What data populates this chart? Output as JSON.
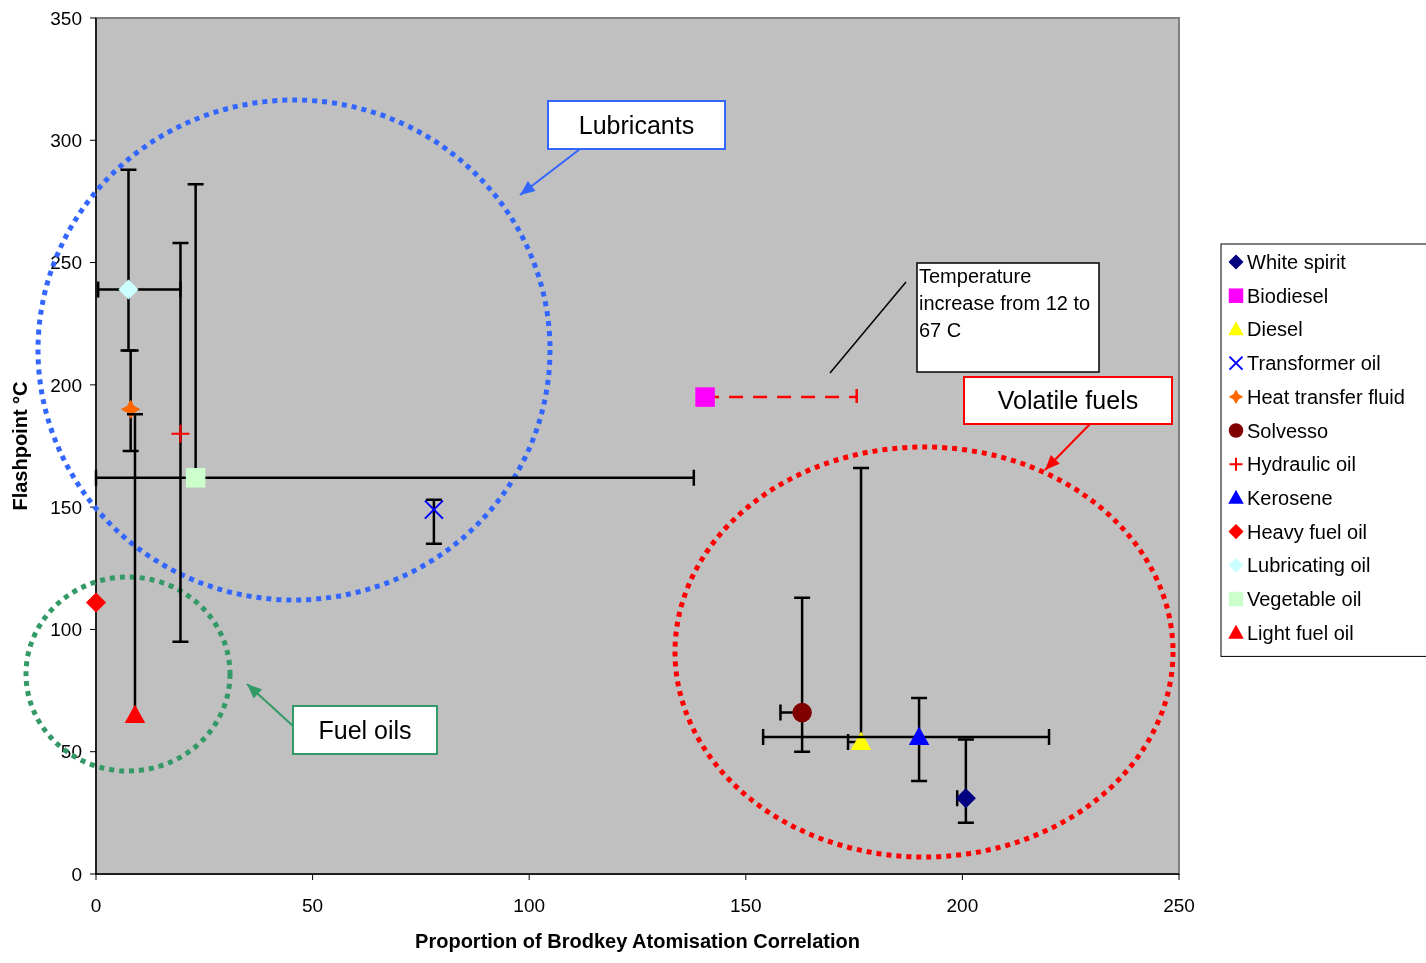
{
  "chart_data": {
    "type": "scatter",
    "xlabel": "Proportion of Brodkey Atomisation Correlation",
    "ylabel": "Flashpoint °C",
    "xlim": [
      0,
      250
    ],
    "xticks": [
      0,
      50,
      100,
      150,
      200,
      250
    ],
    "ylim": [
      0,
      350
    ],
    "yticks": [
      0,
      50,
      100,
      150,
      200,
      250,
      300,
      350
    ],
    "grid": false,
    "legend": "right",
    "annotations": [
      "Lubricants",
      "Fuel oils",
      "Volatile fuels",
      "Temperature increase from 12 to 67 C"
    ],
    "series": [
      {
        "name": "White spirit",
        "color": "#000080",
        "marker": "diamond",
        "x": [
          200.8
        ],
        "values": [
          31
        ],
        "errors": [
          [
            21,
            55
          ]
        ],
        "xerrors": [
          [
            198.8,
            200.8
          ]
        ]
      },
      {
        "name": "Biodiesel",
        "color": "#ff00ff",
        "marker": "square",
        "x": [
          140.6
        ],
        "values": [
          195
        ],
        "xerrors": [
          [
            140.6,
            175.6
          ]
        ],
        "line_style": "dashed"
      },
      {
        "name": "Diesel",
        "color": "#ffff00",
        "marker": "triangle",
        "x": [
          176.6
        ],
        "values": [
          54
        ],
        "errors": [
          [
            54,
            166
          ]
        ],
        "xerrors": [
          [
            173.6,
            176.6
          ]
        ]
      },
      {
        "name": "Transformer oil",
        "color": "#0000ff",
        "marker": "cross",
        "x": [
          78
        ],
        "values": [
          149
        ],
        "errors": [
          [
            135,
            153
          ]
        ]
      },
      {
        "name": "Heat transfer fluid",
        "color": "#ff6600",
        "marker": "star",
        "x": [
          8
        ],
        "values": [
          190
        ],
        "errors": [
          [
            173,
            214
          ]
        ]
      },
      {
        "name": "Solvesso",
        "color": "#800000",
        "marker": "circle",
        "x": [
          163
        ],
        "values": [
          66
        ],
        "errors": [
          [
            50,
            113
          ]
        ],
        "xerrors": [
          [
            158,
            163
          ]
        ]
      },
      {
        "name": "Hydraulic oil",
        "color": "#ff0000",
        "marker": "plus",
        "x": [
          19.5
        ],
        "values": [
          180
        ],
        "errors": [
          [
            95,
            258
          ]
        ]
      },
      {
        "name": "Kerosene",
        "color": "#0000ff",
        "marker": "triangle",
        "x": [
          190
        ],
        "values": [
          56
        ],
        "errors": [
          [
            38,
            72
          ]
        ],
        "xerrors": [
          [
            154,
            220
          ]
        ]
      },
      {
        "name": "Heavy fuel oil",
        "color": "#ff0000",
        "marker": "diamond",
        "x": [
          0
        ],
        "values": [
          111
        ]
      },
      {
        "name": "Lubricating oil",
        "color": "#ccffff",
        "marker": "diamond",
        "x": [
          7.5
        ],
        "values": [
          239
        ],
        "errors": [
          [
            214,
            288
          ]
        ],
        "xerrors": [
          [
            0.5,
            19.5
          ]
        ]
      },
      {
        "name": "Vegetable oil",
        "color": "#ccffcc",
        "marker": "square",
        "x": [
          23
        ],
        "values": [
          162
        ],
        "errors": [
          [
            162,
            282
          ]
        ],
        "xerrors": [
          [
            0,
            138
          ]
        ]
      },
      {
        "name": "Light fuel oil",
        "color": "#ff0000",
        "marker": "triangle",
        "x": [
          9
        ],
        "values": [
          65
        ],
        "errors": [
          [
            65,
            188
          ]
        ]
      }
    ]
  }
}
